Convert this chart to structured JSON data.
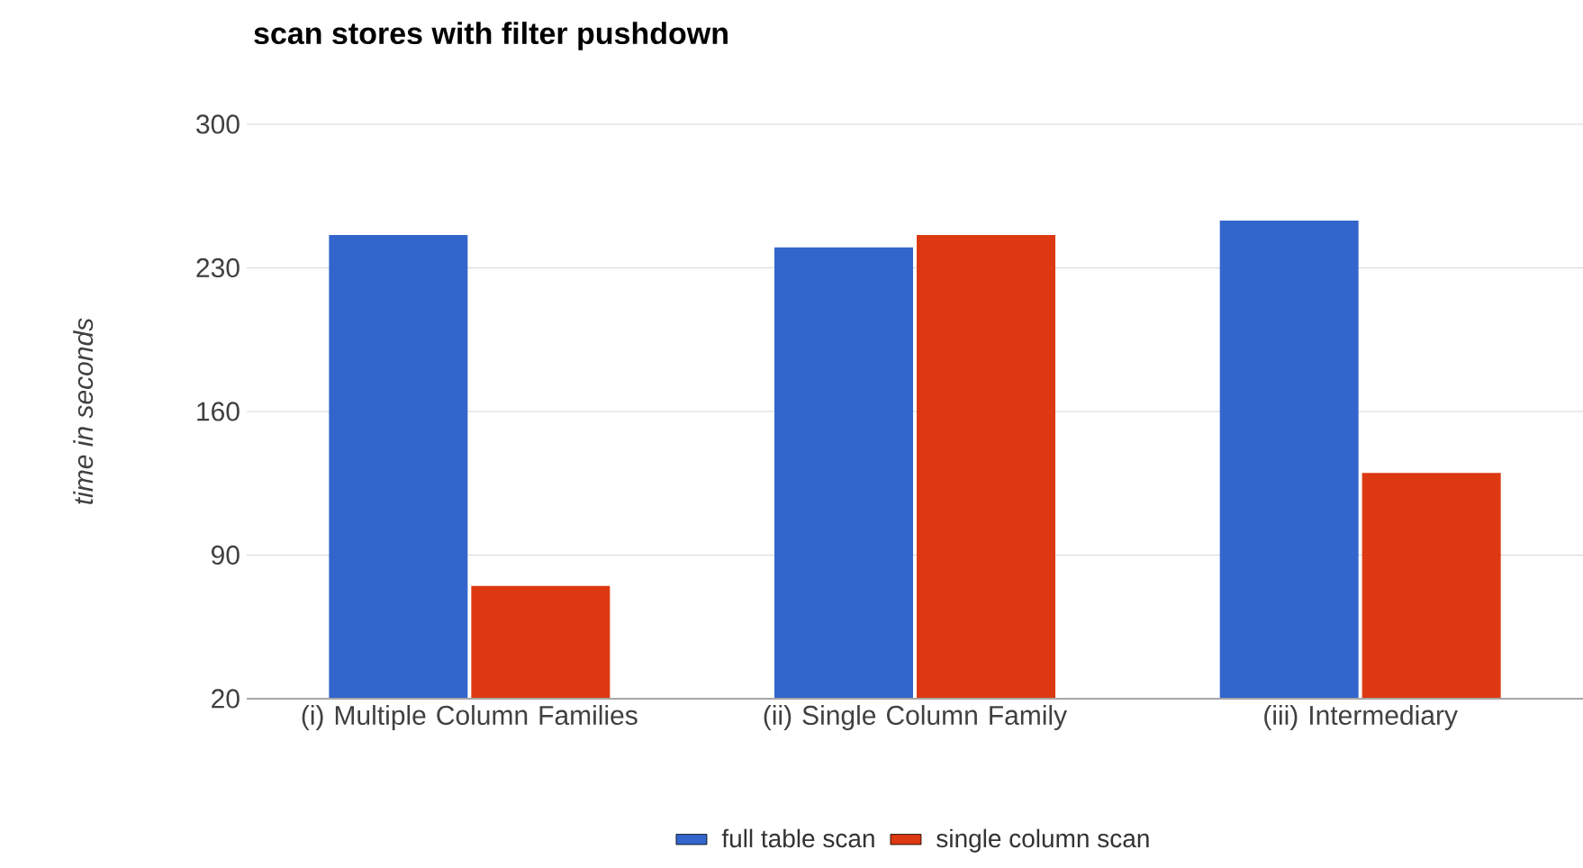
{
  "chart_data": {
    "type": "bar",
    "title": "scan stores with filter pushdown",
    "ylabel": "time in seconds",
    "categories": [
      "(i) Multiple Column Families",
      "(ii) Single Column Family",
      "(iii) Intermediary"
    ],
    "series": [
      {
        "name": "full table scan",
        "color": "#3366cc",
        "values": [
          246,
          240,
          253
        ]
      },
      {
        "name": "single column scan",
        "color": "#dc3912",
        "values": [
          75,
          246,
          130
        ]
      }
    ],
    "ylim": [
      20,
      300
    ],
    "yticks": [
      20,
      90,
      160,
      230,
      300
    ],
    "grid": "y",
    "legend": "bottom"
  }
}
